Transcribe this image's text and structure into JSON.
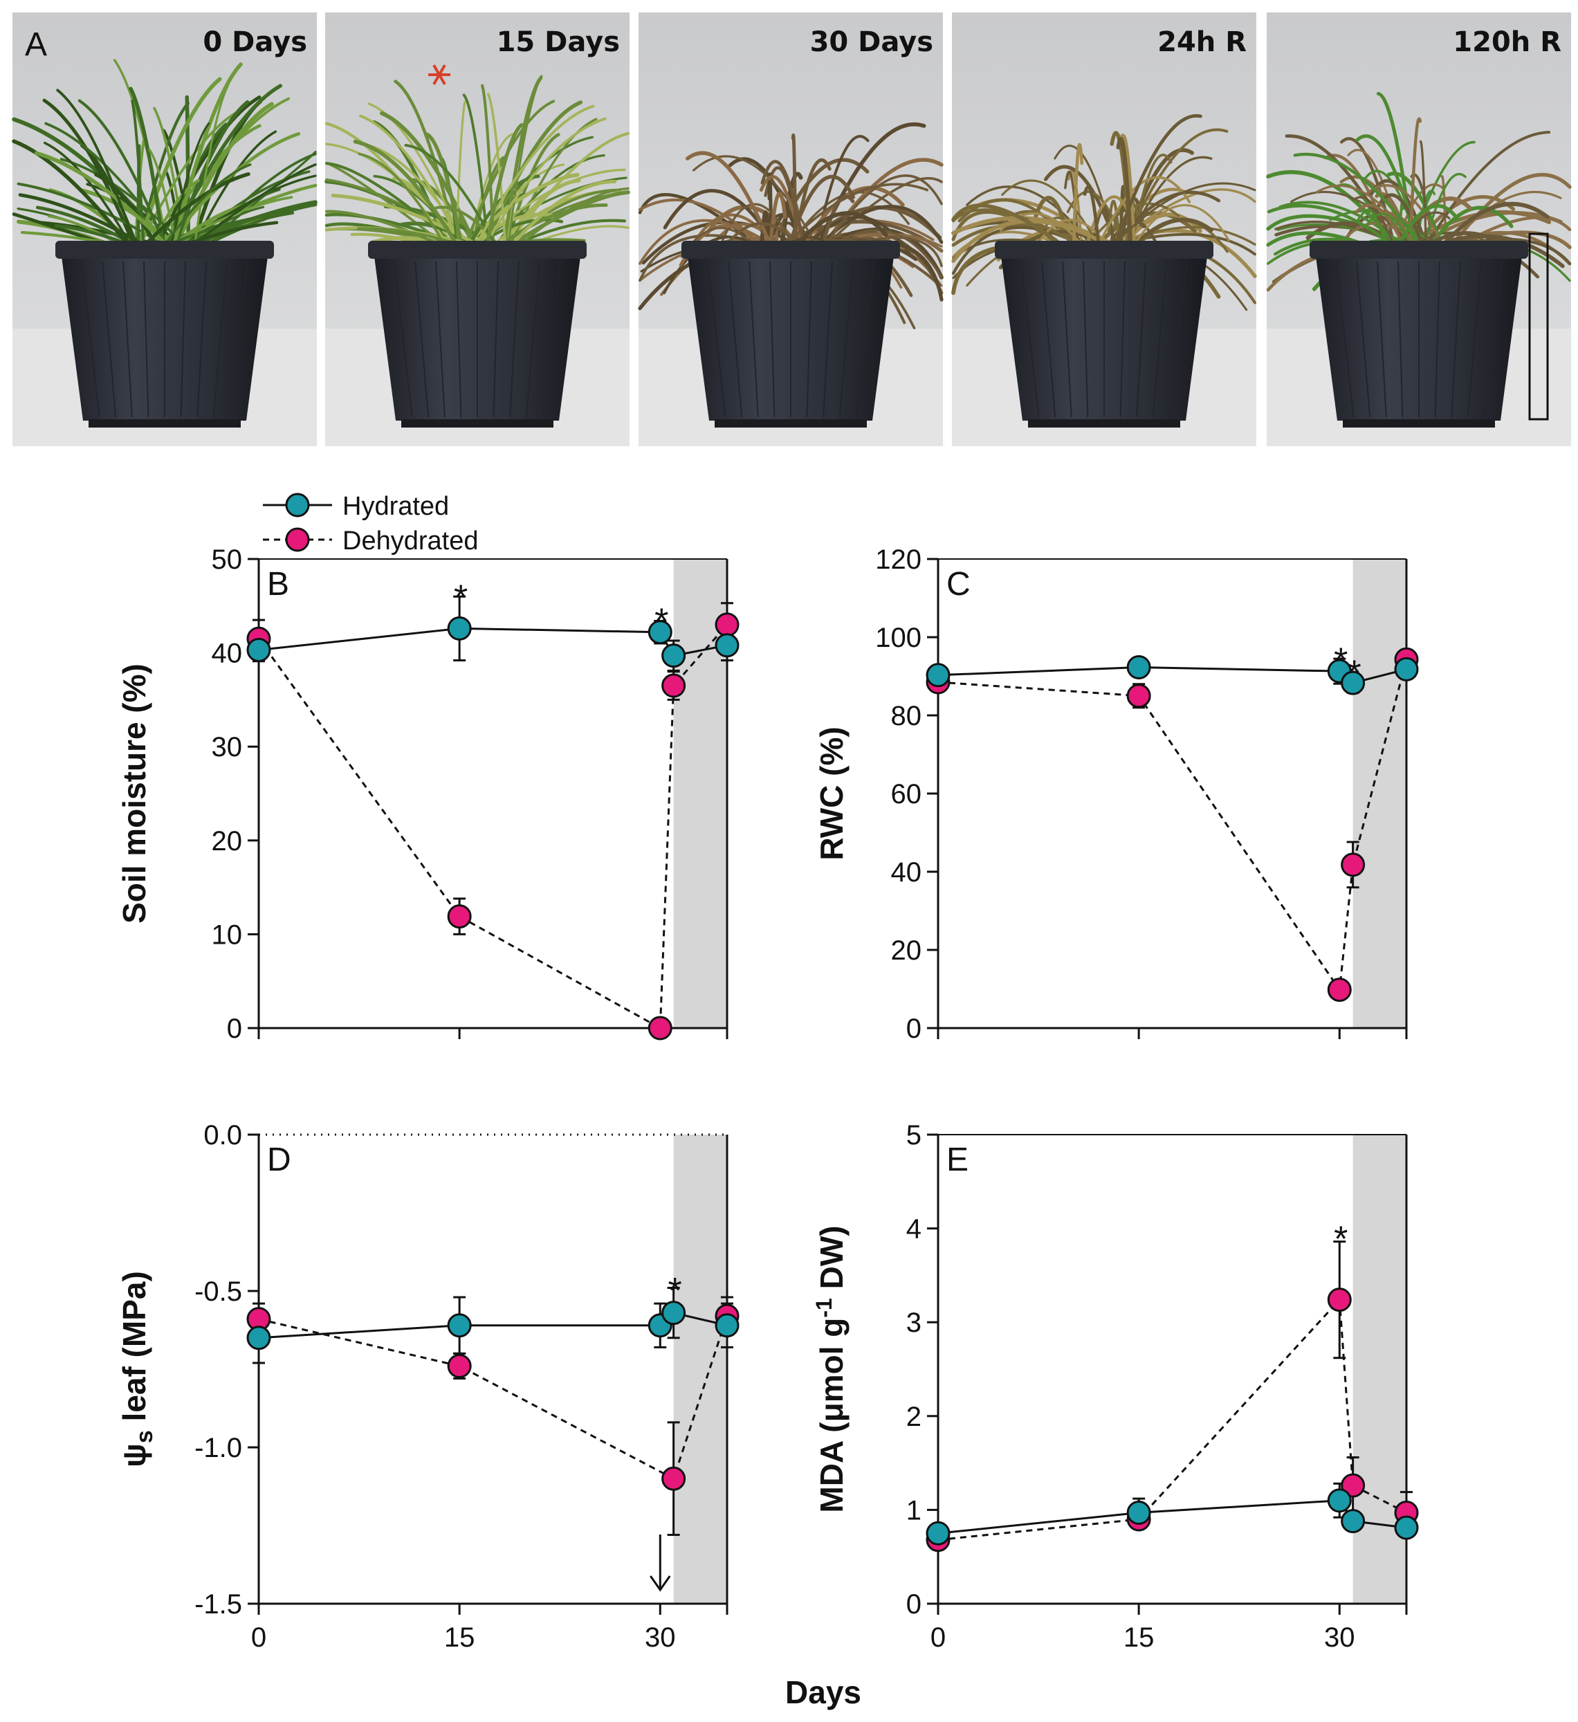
{
  "photos": {
    "panel_letter": "A",
    "labels": [
      "0 Days",
      "15 Days",
      "30 Days",
      "24h R",
      "120h R"
    ]
  },
  "legend": {
    "hydrated": "Hydrated",
    "dehydrated": "Dehydrated"
  },
  "xlabel": "Days",
  "colors": {
    "hydrated": "#1a9aa8",
    "dehydrated": "#e6197a",
    "shade": "#d6d6d6"
  },
  "chart_data": [
    {
      "panel": "B",
      "type": "line",
      "ylabel": "Soil moisture (%)",
      "ylim": [
        0,
        50
      ],
      "yticks": [
        0,
        10,
        20,
        30,
        40,
        50
      ],
      "ytick_labels": [
        "0",
        "10",
        "20",
        "30",
        "40",
        "50"
      ],
      "xlim": [
        0,
        35
      ],
      "xticks": [
        0,
        15,
        30
      ],
      "xtick_labels": [
        "0",
        "15",
        "30"
      ],
      "shade_from": 31,
      "series": [
        {
          "name": "Hydrated",
          "x": [
            0,
            15,
            30,
            31,
            35
          ],
          "y": [
            40.3,
            42.6,
            42.2,
            39.7,
            40.8
          ],
          "err": [
            1.2,
            3.4,
            1.2,
            1.6,
            1.6
          ]
        },
        {
          "name": "Dehydrated",
          "x": [
            0,
            15,
            30,
            31,
            35
          ],
          "y": [
            41.5,
            11.9,
            0,
            36.5,
            43.0
          ],
          "err": [
            2.0,
            1.9,
            0.3,
            1.5,
            2.3
          ]
        }
      ],
      "asterisks": [
        {
          "x": 15,
          "y": 46.5,
          "text": "*"
        },
        {
          "x": 30,
          "y": 44.0,
          "text": "*"
        }
      ]
    },
    {
      "panel": "C",
      "type": "line",
      "ylabel": "RWC (%)",
      "ylim": [
        0,
        120
      ],
      "yticks": [
        0,
        20,
        40,
        60,
        80,
        100,
        120
      ],
      "ytick_labels": [
        "0",
        "20",
        "40",
        "60",
        "80",
        "100",
        "120"
      ],
      "xlim": [
        0,
        35
      ],
      "xticks": [
        0,
        15,
        30
      ],
      "xtick_labels": [
        "0",
        "15",
        "30"
      ],
      "shade_from": 31,
      "series": [
        {
          "name": "Hydrated",
          "x": [
            0,
            15,
            30,
            31,
            35
          ],
          "y": [
            90.3,
            92.3,
            91.3,
            88.3,
            91.8
          ],
          "err": [
            1.5,
            1.5,
            3.2,
            2.5,
            1.8
          ]
        },
        {
          "name": "Dehydrated",
          "x": [
            0,
            15,
            30,
            31,
            35
          ],
          "y": [
            88.5,
            85.0,
            9.8,
            41.8,
            94.3
          ],
          "err": [
            1.5,
            3.0,
            0.8,
            5.8,
            2.0
          ]
        }
      ],
      "asterisks": [
        {
          "x": 30,
          "y": 95.5,
          "text": "*"
        },
        {
          "x": 31,
          "y": 92.3,
          "text": "*"
        }
      ]
    },
    {
      "panel": "D",
      "type": "line",
      "ylabel": "ψs leaf (MPa)",
      "ylim": [
        -1.5,
        0
      ],
      "yticks": [
        -1.5,
        -1.0,
        -0.5,
        0.0
      ],
      "ytick_labels": [
        "-1.5",
        "-1.0",
        "-0.5",
        "0.0"
      ],
      "xlim": [
        0,
        35
      ],
      "xticks": [
        0,
        15,
        30
      ],
      "xtick_labels": [
        "0",
        "15",
        "30"
      ],
      "shade_from": 31,
      "series": [
        {
          "name": "Hydrated",
          "x": [
            0,
            15,
            30,
            31,
            35
          ],
          "y": [
            -0.65,
            -0.61,
            -0.61,
            -0.57,
            -0.61
          ],
          "err": [
            0.08,
            0.09,
            0.07,
            0.08,
            0.07
          ]
        },
        {
          "name": "Dehydrated",
          "x": [
            0,
            15,
            31,
            35
          ],
          "y": [
            -0.59,
            -0.74,
            -1.1,
            -0.58
          ],
          "err": [
            0.05,
            0.04,
            0.18,
            0.06
          ]
        }
      ],
      "arrow_x": 30,
      "asterisks": [
        {
          "x": 31,
          "y": -0.48,
          "text": "*"
        }
      ]
    },
    {
      "panel": "E",
      "type": "line",
      "ylabel": "MDA (μmol g-1 DW)",
      "ylim": [
        0,
        5
      ],
      "yticks": [
        0,
        1,
        2,
        3,
        4,
        5
      ],
      "ytick_labels": [
        "0",
        "1",
        "2",
        "3",
        "4",
        "5"
      ],
      "xlim": [
        0,
        35
      ],
      "xticks": [
        0,
        15,
        30
      ],
      "xtick_labels": [
        "0",
        "15",
        "30"
      ],
      "shade_from": 31,
      "series": [
        {
          "name": "Hydrated",
          "x": [
            0,
            15,
            30,
            31,
            35
          ],
          "y": [
            0.75,
            0.97,
            1.1,
            0.88,
            0.81
          ],
          "err": [
            0.06,
            0.15,
            0.18,
            0.08,
            0.07
          ]
        },
        {
          "name": "Dehydrated",
          "x": [
            0,
            15,
            30,
            31,
            35
          ],
          "y": [
            0.68,
            0.9,
            3.24,
            1.26,
            0.97
          ],
          "err": [
            0.05,
            0.07,
            0.62,
            0.3,
            0.22
          ]
        }
      ],
      "asterisks": [
        {
          "x": 30,
          "y": 3.95,
          "text": "*"
        }
      ]
    }
  ]
}
